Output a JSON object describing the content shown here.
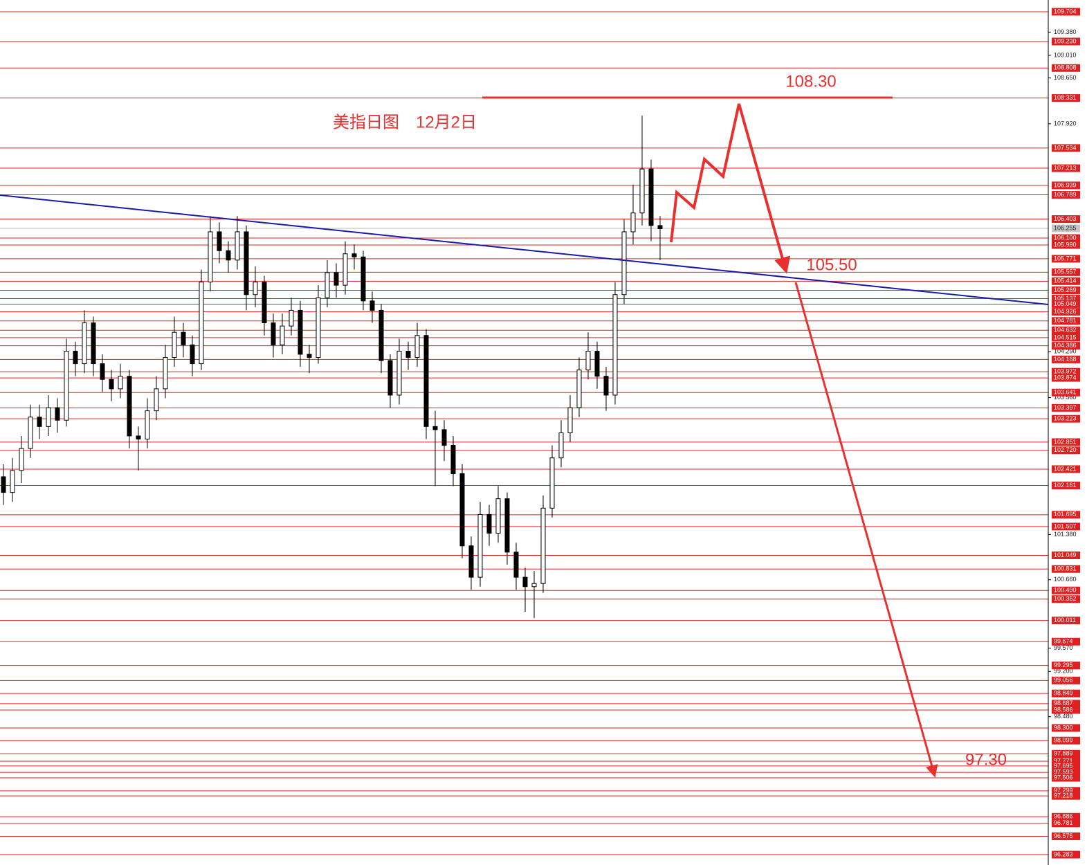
{
  "chart_data": {
    "type": "candlestick",
    "title": "美指日图　12月2日",
    "ylim": [
      96.118,
      109.891
    ],
    "yticks": [
      {
        "value": 109.38,
        "label": "109.380"
      },
      {
        "value": 109.01,
        "label": "109.010"
      },
      {
        "value": 108.65,
        "label": "108.650"
      },
      {
        "value": 107.92,
        "label": "107.920"
      },
      {
        "value": 104.29,
        "label": "104.290"
      },
      {
        "value": 103.56,
        "label": "103.560"
      },
      {
        "value": 101.38,
        "label": "101.380"
      },
      {
        "value": 100.66,
        "label": "100.660"
      },
      {
        "value": 99.57,
        "label": "99.570"
      },
      {
        "value": 99.2,
        "label": "99.200"
      },
      {
        "value": 98.48,
        "label": "98.480"
      }
    ],
    "levels": [
      109.704,
      {
        "value": 109.23,
        "label": "109.230"
      },
      108.808,
      108.331,
      107.534,
      107.213,
      106.939,
      106.789,
      106.403,
      {
        "value": 106.1,
        "label": "106.100"
      },
      {
        "value": 105.99,
        "label": "105.990"
      },
      105.771,
      105.557,
      105.414,
      105.269,
      105.137,
      105.049,
      104.926,
      104.781,
      104.632,
      104.515,
      104.386,
      104.168,
      103.972,
      103.874,
      103.641,
      103.397,
      103.223,
      102.851,
      {
        "value": 102.72,
        "label": "102.720"
      },
      102.421,
      102.161,
      101.695,
      101.507,
      101.049,
      100.831,
      {
        "value": 100.49,
        "label": "100.490"
      },
      100.352,
      100.011,
      99.674,
      99.295,
      99.056,
      98.849,
      98.687,
      98.586,
      {
        "value": 98.3,
        "label": "98.300"
      },
      98.099,
      97.889,
      97.771,
      97.695,
      97.593,
      97.506,
      97.299,
      97.218,
      96.886,
      96.781,
      96.575,
      96.283
    ],
    "current_price": 106.255,
    "annotations": [
      "108.30",
      "105.50",
      "97.30"
    ],
    "candles": [
      [
        102.3,
        102.5,
        101.85,
        102.05
      ],
      [
        102.05,
        102.6,
        101.9,
        102.4
      ],
      [
        102.4,
        102.95,
        102.2,
        102.75
      ],
      [
        102.75,
        103.45,
        102.6,
        103.25
      ],
      [
        103.25,
        103.45,
        102.9,
        103.1
      ],
      [
        103.1,
        103.6,
        102.95,
        103.4
      ],
      [
        103.4,
        103.55,
        103.0,
        103.2
      ],
      [
        103.2,
        104.5,
        103.1,
        104.3
      ],
      [
        104.3,
        104.45,
        103.9,
        104.1
      ],
      [
        104.1,
        104.95,
        103.95,
        104.75
      ],
      [
        104.75,
        104.85,
        103.9,
        104.1
      ],
      [
        104.1,
        104.25,
        103.65,
        103.85
      ],
      [
        103.85,
        104.0,
        103.5,
        103.7
      ],
      [
        103.7,
        104.1,
        103.55,
        103.9
      ],
      [
        103.9,
        104.0,
        102.75,
        102.95
      ],
      [
        102.95,
        103.1,
        102.4,
        102.9
      ],
      [
        102.9,
        103.55,
        102.75,
        103.35
      ],
      [
        103.35,
        103.9,
        103.2,
        103.7
      ],
      [
        103.7,
        104.4,
        103.55,
        104.2
      ],
      [
        104.2,
        104.85,
        104.05,
        104.6
      ],
      [
        104.6,
        104.75,
        104.2,
        104.4
      ],
      [
        104.4,
        104.55,
        103.9,
        104.1
      ],
      [
        104.1,
        105.6,
        104.0,
        105.4
      ],
      [
        105.4,
        106.45,
        105.25,
        106.2
      ],
      [
        106.2,
        106.35,
        105.7,
        105.9
      ],
      [
        105.9,
        106.05,
        105.55,
        105.75
      ],
      [
        105.75,
        106.45,
        105.6,
        106.2
      ],
      [
        106.2,
        106.3,
        104.95,
        105.2
      ],
      [
        105.2,
        105.65,
        105.0,
        105.4
      ],
      [
        105.4,
        105.5,
        104.55,
        104.75
      ],
      [
        104.75,
        104.9,
        104.2,
        104.4
      ],
      [
        104.4,
        104.9,
        104.25,
        104.7
      ],
      [
        104.7,
        105.15,
        104.55,
        104.95
      ],
      [
        104.95,
        105.1,
        104.05,
        104.25
      ],
      [
        104.25,
        104.4,
        103.95,
        104.2
      ],
      [
        104.2,
        105.35,
        104.1,
        105.15
      ],
      [
        105.15,
        105.75,
        105.0,
        105.55
      ],
      [
        105.55,
        105.7,
        105.15,
        105.35
      ],
      [
        105.35,
        106.05,
        105.2,
        105.85
      ],
      [
        105.85,
        106.0,
        105.6,
        105.8
      ],
      [
        105.8,
        105.9,
        104.95,
        105.1
      ],
      [
        105.1,
        105.25,
        104.75,
        104.95
      ],
      [
        104.95,
        105.05,
        103.95,
        104.15
      ],
      [
        104.15,
        104.25,
        103.4,
        103.6
      ],
      [
        103.6,
        104.5,
        103.45,
        104.3
      ],
      [
        104.3,
        104.45,
        104.0,
        104.2
      ],
      [
        104.2,
        104.75,
        104.05,
        104.55
      ],
      [
        104.55,
        104.65,
        102.9,
        103.1
      ],
      [
        103.1,
        103.35,
        102.15,
        103.05
      ],
      [
        103.05,
        103.2,
        102.55,
        102.8
      ],
      [
        102.8,
        102.95,
        102.15,
        102.35
      ],
      [
        102.35,
        102.5,
        101.0,
        101.2
      ],
      [
        101.2,
        101.35,
        100.5,
        100.7
      ],
      [
        100.7,
        101.9,
        100.55,
        101.7
      ],
      [
        101.7,
        101.85,
        101.2,
        101.4
      ],
      [
        101.4,
        102.15,
        101.25,
        101.95
      ],
      [
        101.95,
        102.05,
        100.9,
        101.1
      ],
      [
        101.1,
        101.25,
        100.5,
        100.7
      ],
      [
        100.7,
        100.85,
        100.15,
        100.55
      ],
      [
        100.55,
        100.8,
        100.05,
        100.6
      ],
      [
        100.6,
        102.0,
        100.45,
        101.8
      ],
      [
        101.8,
        102.8,
        101.65,
        102.6
      ],
      [
        102.6,
        103.2,
        102.45,
        103.0
      ],
      [
        103.0,
        103.6,
        102.85,
        103.4
      ],
      [
        103.4,
        104.2,
        103.25,
        104.0
      ],
      [
        104.0,
        104.6,
        103.85,
        104.3
      ],
      [
        104.3,
        104.45,
        103.7,
        103.9
      ],
      [
        103.9,
        104.05,
        103.35,
        103.6
      ],
      [
        103.6,
        105.4,
        103.45,
        105.2
      ],
      [
        105.2,
        106.4,
        105.05,
        106.2
      ],
      [
        106.2,
        106.95,
        106.0,
        106.5
      ],
      [
        106.5,
        108.05,
        106.3,
        107.2
      ],
      [
        107.2,
        107.35,
        106.05,
        106.3
      ],
      [
        106.3,
        106.45,
        105.75,
        106.25
      ]
    ]
  }
}
